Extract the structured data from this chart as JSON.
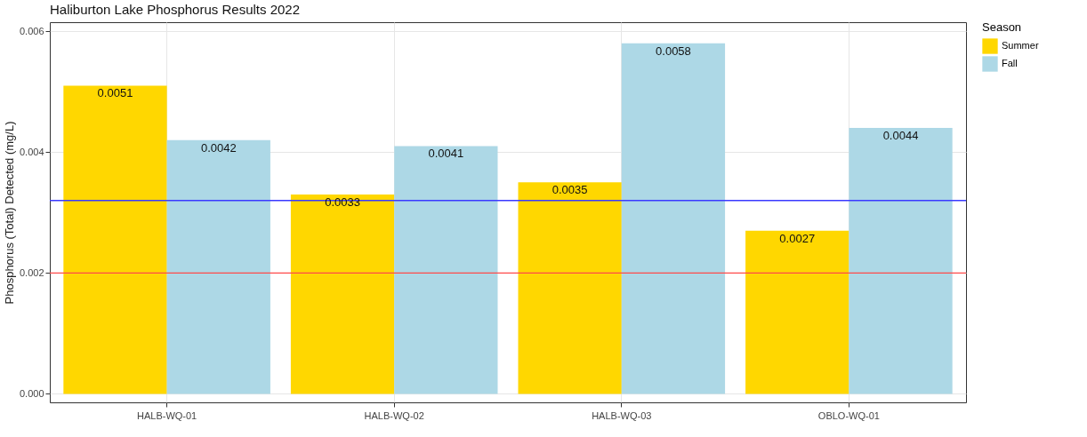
{
  "chart_data": {
    "type": "bar",
    "title": "Haliburton Lake Phosphorus Results 2022",
    "ylabel": "Phosphorus (Total) Detected (mg/L)",
    "legend_title": "Season",
    "categories": [
      "HALB-WQ-01",
      "HALB-WQ-02",
      "HALB-WQ-03",
      "OBLO-WQ-01"
    ],
    "series": [
      {
        "name": "Summer",
        "color": "#ffd700",
        "values": [
          0.0051,
          0.0033,
          0.0035,
          0.0027
        ]
      },
      {
        "name": "Fall",
        "color": "#add8e6",
        "values": [
          0.0042,
          0.0041,
          0.0058,
          0.0044
        ]
      }
    ],
    "ylim": [
      -0.00014,
      0.00615
    ],
    "yticks": [
      {
        "value": 0,
        "label": "0.000"
      },
      {
        "value": 0.002,
        "label": "0.002"
      },
      {
        "value": 0.004,
        "label": "0.004"
      },
      {
        "value": 0.006,
        "label": "0.006"
      }
    ],
    "ref_lines": [
      {
        "axis": "y",
        "value": 0.0032,
        "color": "#3a3aff"
      },
      {
        "axis": "y",
        "value": 0.002,
        "color": "#ff4a4a"
      }
    ],
    "data_labels": true,
    "grid": true,
    "legend": "right"
  }
}
